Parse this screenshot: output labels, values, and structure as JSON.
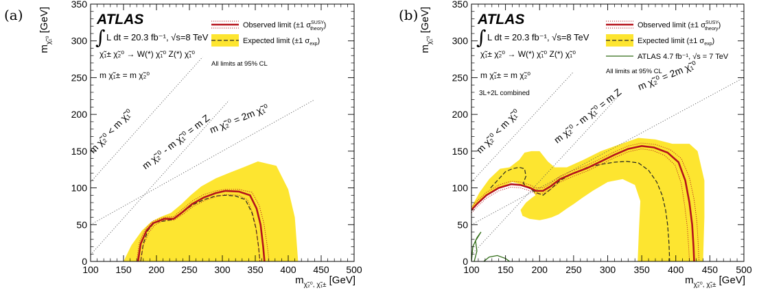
{
  "chart_data": [
    {
      "panel_label": "(a)",
      "type": "line",
      "xlabel": "m",
      "xlabel_sub": "χ̃₂⁰, χ̃₁±",
      "xlabel_unit": "[GeV]",
      "ylabel": "m",
      "ylabel_sub": "χ̃₁⁰",
      "ylabel_unit": "[GeV]",
      "xlim": [
        100,
        500
      ],
      "ylim": [
        0,
        350
      ],
      "xticks": [
        100,
        150,
        200,
        250,
        300,
        350,
        400,
        450,
        500
      ],
      "yticks": [
        0,
        50,
        100,
        150,
        200,
        250,
        300,
        350
      ],
      "atlas": "ATLAS",
      "lumi": "L dt = 20.3 fb⁻¹, √s=8 TeV",
      "process": "χ̃₁± χ̃₂⁰ → W(*) χ̃₁⁰ Z(*) χ̃₁⁰",
      "mass_condition": "m χ̃₁± = m χ̃₂⁰",
      "extra_note": "",
      "cl_note": "All limits at 95% CL",
      "legend": [
        {
          "label": "Observed limit (±1 σ",
          "label_sup": "SUSY",
          "label_sub": "theory",
          "label_end": ")",
          "style": "observed"
        },
        {
          "label": "Expected limit (±1 σ",
          "label_sup": "",
          "label_sub": "exp",
          "label_end": ")",
          "style": "expected"
        }
      ],
      "diagonals": [
        {
          "label": "m χ̃₂⁰ < m χ̃₁⁰",
          "points": [
            [
              100,
              108
            ],
            [
              270,
              278
            ]
          ]
        },
        {
          "label": "m χ̃₂⁰ - m χ̃₁⁰ = m Z",
          "points": [
            [
              100,
              9
            ],
            [
              310,
              219
            ]
          ]
        },
        {
          "label": "m χ̃₂⁰ = 2m χ̃₁⁰",
          "points": [
            [
              100,
              50
            ],
            [
              440,
              220
            ]
          ]
        }
      ],
      "expected_band": [
        [
          150,
          0
        ],
        [
          162,
          22
        ],
        [
          178,
          42
        ],
        [
          192,
          54
        ],
        [
          205,
          60
        ],
        [
          222,
          66
        ],
        [
          238,
          78
        ],
        [
          252,
          90
        ],
        [
          268,
          102
        ],
        [
          290,
          113
        ],
        [
          312,
          121
        ],
        [
          332,
          128
        ],
        [
          354,
          136
        ],
        [
          382,
          130
        ],
        [
          400,
          98
        ],
        [
          410,
          60
        ],
        [
          415,
          0
        ]
      ],
      "observed": [
        [
          172,
          0
        ],
        [
          176,
          24
        ],
        [
          185,
          42
        ],
        [
          195,
          52
        ],
        [
          212,
          58
        ],
        [
          226,
          58
        ],
        [
          238,
          66
        ],
        [
          254,
          78
        ],
        [
          272,
          87
        ],
        [
          290,
          93
        ],
        [
          305,
          96
        ],
        [
          325,
          95
        ],
        [
          342,
          90
        ],
        [
          352,
          72
        ],
        [
          358,
          50
        ],
        [
          362,
          20
        ],
        [
          364,
          0
        ]
      ],
      "observed_up": [
        [
          170,
          0
        ],
        [
          174,
          26
        ],
        [
          183,
          44
        ],
        [
          195,
          55
        ],
        [
          212,
          60
        ],
        [
          226,
          61
        ],
        [
          238,
          70
        ],
        [
          254,
          82
        ],
        [
          272,
          91
        ],
        [
          290,
          96
        ],
        [
          305,
          98
        ],
        [
          325,
          98
        ],
        [
          345,
          94
        ],
        [
          356,
          76
        ],
        [
          363,
          52
        ],
        [
          368,
          22
        ],
        [
          371,
          0
        ]
      ],
      "observed_down": [
        [
          176,
          0
        ],
        [
          180,
          22
        ],
        [
          189,
          40
        ],
        [
          198,
          50
        ],
        [
          212,
          56
        ],
        [
          226,
          56
        ],
        [
          240,
          64
        ],
        [
          256,
          75
        ],
        [
          274,
          83
        ],
        [
          290,
          88
        ],
        [
          305,
          91
        ],
        [
          325,
          90
        ],
        [
          338,
          84
        ],
        [
          346,
          66
        ],
        [
          351,
          46
        ],
        [
          355,
          18
        ],
        [
          357,
          0
        ]
      ],
      "expected": [
        [
          176,
          0
        ],
        [
          180,
          24
        ],
        [
          187,
          42
        ],
        [
          197,
          53
        ],
        [
          212,
          55
        ],
        [
          225,
          57
        ],
        [
          240,
          67
        ],
        [
          255,
          77
        ],
        [
          272,
          84
        ],
        [
          290,
          89
        ],
        [
          305,
          90
        ],
        [
          320,
          89
        ],
        [
          335,
          84
        ],
        [
          345,
          66
        ],
        [
          351,
          45
        ],
        [
          355,
          20
        ],
        [
          357,
          0
        ]
      ],
      "atlas7": []
    },
    {
      "panel_label": "(b)",
      "type": "line",
      "xlabel": "m",
      "xlabel_sub": "χ̃₂⁰, χ̃₁±",
      "xlabel_unit": "[GeV]",
      "ylabel": "m",
      "ylabel_sub": "χ̃₁⁰",
      "ylabel_unit": "[GeV]",
      "xlim": [
        100,
        500
      ],
      "ylim": [
        0,
        350
      ],
      "xticks": [
        100,
        150,
        200,
        250,
        300,
        350,
        400,
        450,
        500
      ],
      "yticks": [
        0,
        50,
        100,
        150,
        200,
        250,
        300,
        350
      ],
      "atlas": "ATLAS",
      "lumi": "L dt = 20.3 fb⁻¹, √s=8 TeV",
      "process": "χ̃₁± χ̃₂⁰ → W(*) χ̃₁⁰ Z(*) χ̃₁⁰",
      "mass_condition": "m χ̃₁± = m χ̃₂⁰",
      "extra_note": "3L+2L combined",
      "cl_note": "All limits at 95% CL",
      "legend": [
        {
          "label": "Observed limit (±1 σ",
          "label_sup": "SUSY",
          "label_sub": "theory",
          "label_end": ")",
          "style": "observed"
        },
        {
          "label": "Expected limit (±1 σ",
          "label_sup": "",
          "label_sub": "exp",
          "label_end": ")",
          "style": "expected"
        },
        {
          "label": "ATLAS 4.7 fb⁻¹, √s = 7 TeV",
          "label_sup": "",
          "label_sub": "",
          "label_end": "",
          "style": "atlas7"
        }
      ],
      "diagonals": [
        {
          "label": "m χ̃₂⁰ < m χ̃₁⁰",
          "points": [
            [
              100,
              108
            ],
            [
              250,
              258
            ]
          ]
        },
        {
          "label": "m χ̃₂⁰ - m χ̃₁⁰ = m Z",
          "points": [
            [
              100,
              9
            ],
            [
              320,
              229
            ]
          ]
        },
        {
          "label": "m χ̃₂⁰ = 2m χ̃₁⁰",
          "points": [
            [
              100,
              50
            ],
            [
              500,
              250
            ]
          ]
        }
      ],
      "expected_band": [
        [
          100,
          74
        ],
        [
          112,
          94
        ],
        [
          126,
          112
        ],
        [
          142,
          126
        ],
        [
          156,
          128
        ],
        [
          170,
          138
        ],
        [
          178,
          148
        ],
        [
          188,
          150
        ],
        [
          200,
          150
        ],
        [
          212,
          136
        ],
        [
          222,
          128
        ],
        [
          240,
          128
        ],
        [
          264,
          138
        ],
        [
          290,
          150
        ],
        [
          320,
          160
        ],
        [
          345,
          168
        ],
        [
          370,
          166
        ],
        [
          395,
          160
        ],
        [
          420,
          160
        ],
        [
          432,
          150
        ],
        [
          442,
          110
        ],
        [
          442,
          60
        ],
        [
          440,
          0
        ],
        [
          344,
          0
        ],
        [
          346,
          46
        ],
        [
          348,
          82
        ],
        [
          340,
          104
        ],
        [
          322,
          112
        ],
        [
          300,
          108
        ],
        [
          278,
          96
        ],
        [
          262,
          86
        ],
        [
          250,
          78
        ],
        [
          240,
          72
        ],
        [
          228,
          64
        ],
        [
          218,
          60
        ],
        [
          210,
          58
        ],
        [
          200,
          56
        ],
        [
          185,
          58
        ],
        [
          175,
          62
        ],
        [
          172,
          70
        ],
        [
          180,
          80
        ],
        [
          188,
          86
        ],
        [
          194,
          90
        ],
        [
          190,
          96
        ],
        [
          176,
          104
        ],
        [
          160,
          108
        ],
        [
          140,
          100
        ],
        [
          120,
          88
        ],
        [
          102,
          72
        ]
      ],
      "observed": [
        [
          100,
          70
        ],
        [
          108,
          78
        ],
        [
          122,
          90
        ],
        [
          140,
          100
        ],
        [
          158,
          105
        ],
        [
          172,
          104
        ],
        [
          186,
          100
        ],
        [
          195,
          96
        ],
        [
          205,
          96
        ],
        [
          216,
          102
        ],
        [
          230,
          112
        ],
        [
          250,
          120
        ],
        [
          270,
          127
        ],
        [
          290,
          136
        ],
        [
          310,
          145
        ],
        [
          330,
          153
        ],
        [
          350,
          157
        ],
        [
          368,
          155
        ],
        [
          388,
          148
        ],
        [
          404,
          135
        ],
        [
          414,
          110
        ],
        [
          420,
          80
        ],
        [
          424,
          50
        ],
        [
          426,
          20
        ],
        [
          427,
          0
        ]
      ],
      "observed_up": [
        [
          100,
          74
        ],
        [
          108,
          82
        ],
        [
          122,
          94
        ],
        [
          140,
          104
        ],
        [
          158,
          109
        ],
        [
          172,
          108
        ],
        [
          186,
          104
        ],
        [
          195,
          100
        ],
        [
          205,
          100
        ],
        [
          216,
          106
        ],
        [
          230,
          116
        ],
        [
          250,
          124
        ],
        [
          270,
          131
        ],
        [
          290,
          140
        ],
        [
          310,
          149
        ],
        [
          330,
          157
        ],
        [
          350,
          161
        ],
        [
          370,
          159
        ],
        [
          392,
          152
        ],
        [
          408,
          140
        ],
        [
          420,
          114
        ],
        [
          427,
          84
        ],
        [
          431,
          54
        ],
        [
          433,
          22
        ],
        [
          434,
          0
        ]
      ],
      "observed_down": [
        [
          100,
          66
        ],
        [
          108,
          74
        ],
        [
          122,
          86
        ],
        [
          140,
          96
        ],
        [
          158,
          101
        ],
        [
          172,
          100
        ],
        [
          186,
          96
        ],
        [
          195,
          92
        ],
        [
          205,
          92
        ],
        [
          216,
          98
        ],
        [
          230,
          108
        ],
        [
          250,
          116
        ],
        [
          270,
          123
        ],
        [
          290,
          132
        ],
        [
          310,
          141
        ],
        [
          330,
          149
        ],
        [
          350,
          153
        ],
        [
          366,
          151
        ],
        [
          384,
          144
        ],
        [
          399,
          131
        ],
        [
          408,
          106
        ],
        [
          413,
          76
        ],
        [
          417,
          46
        ],
        [
          419,
          18
        ],
        [
          420,
          0
        ]
      ],
      "expected": [
        [
          128,
          100
        ],
        [
          140,
          112
        ],
        [
          150,
          122
        ],
        [
          160,
          126
        ],
        [
          170,
          128
        ],
        [
          178,
          126
        ],
        [
          180,
          116
        ],
        [
          176,
          106
        ],
        [
          184,
          100
        ],
        [
          194,
          94
        ],
        [
          205,
          90
        ],
        [
          216,
          98
        ],
        [
          230,
          110
        ],
        [
          250,
          120
        ],
        [
          270,
          128
        ],
        [
          290,
          132
        ],
        [
          310,
          135
        ],
        [
          328,
          136
        ],
        [
          345,
          134
        ],
        [
          360,
          124
        ],
        [
          372,
          108
        ],
        [
          380,
          90
        ],
        [
          385,
          70
        ],
        [
          388,
          50
        ],
        [
          390,
          25
        ],
        [
          391,
          0
        ]
      ],
      "atlas7": [
        [
          [
            104,
            0
          ],
          [
            108,
            14
          ],
          [
            106,
            28
          ],
          [
            114,
            40
          ],
          [
            108,
            32
          ],
          [
            102,
            20
          ],
          [
            100,
            0
          ]
        ],
        [
          [
            118,
            0
          ],
          [
            126,
            6
          ],
          [
            138,
            8
          ],
          [
            150,
            4
          ],
          [
            156,
            0
          ]
        ]
      ]
    }
  ]
}
